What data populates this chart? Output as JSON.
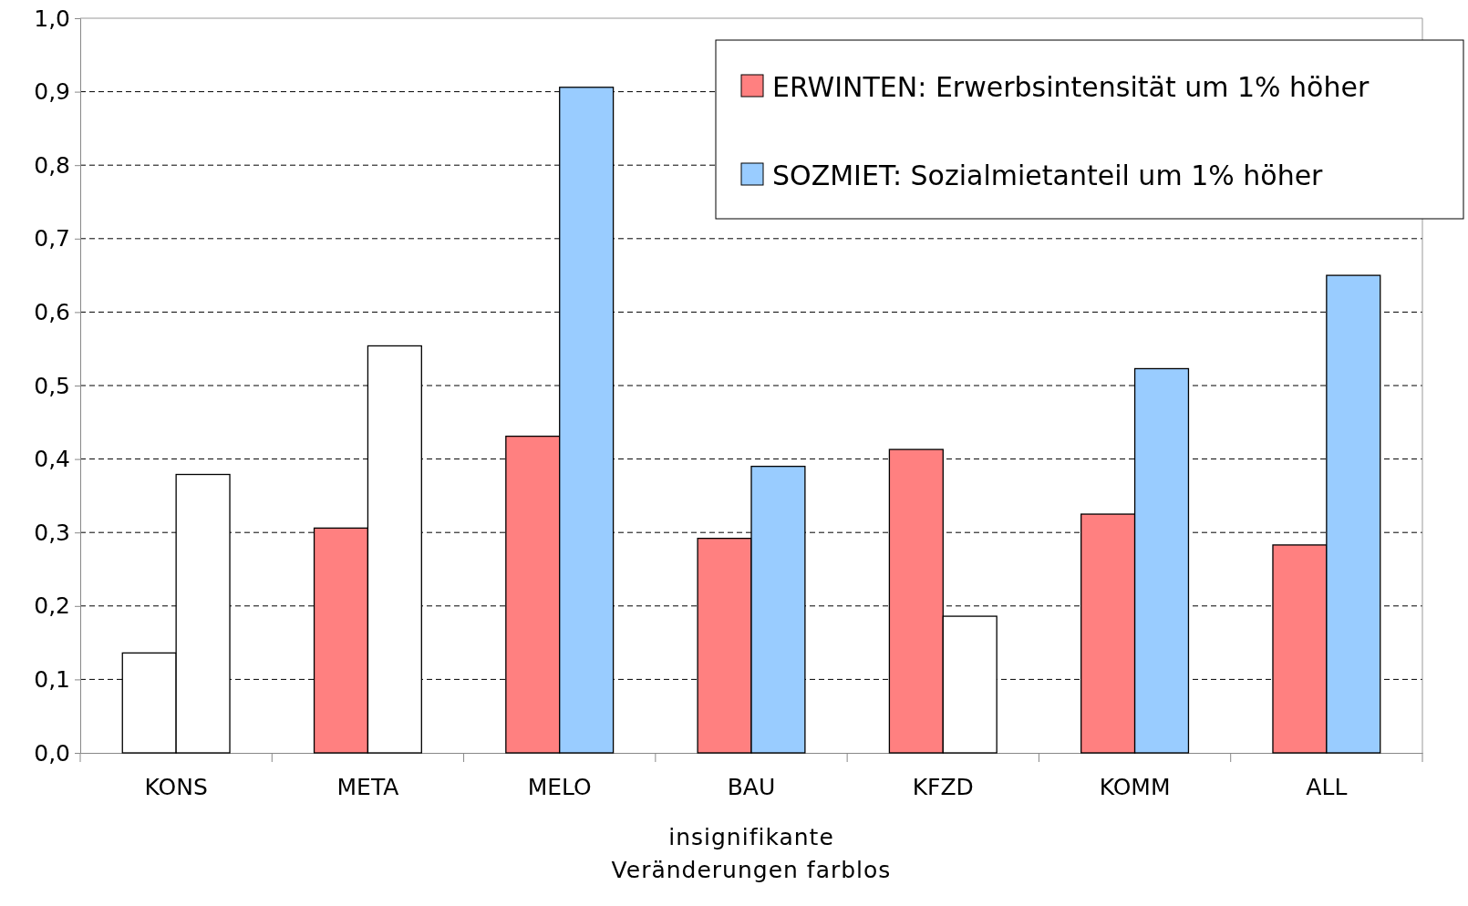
{
  "chart_data": {
    "type": "bar",
    "xlabel": "insignifikante\nVeränderungen farblos",
    "categories": [
      "KONS",
      "META",
      "MELO",
      "BAU",
      "KFZD",
      "KOMM",
      "ALL"
    ],
    "series": [
      {
        "name": "ERWINTEN: Erwerbsintensität um 1% höher",
        "color": "#ff8080",
        "colors": [
          "#ffffff",
          "#ff8080",
          "#ff8080",
          "#ff8080",
          "#ff8080",
          "#ff8080",
          "#ff8080"
        ],
        "values": [
          0.136,
          0.306,
          0.431,
          0.292,
          0.413,
          0.325,
          0.283
        ]
      },
      {
        "name": "SOZMIET: Sozialmietanteil um 1% höher",
        "color": "#99ccff",
        "colors": [
          "#ffffff",
          "#ffffff",
          "#99ccff",
          "#99ccff",
          "#ffffff",
          "#99ccff",
          "#99ccff"
        ],
        "values": [
          0.379,
          0.554,
          0.906,
          0.39,
          0.186,
          0.523,
          0.65
        ]
      }
    ],
    "ylim": [
      0,
      1
    ],
    "yticks": [
      {
        "value": 0,
        "label": "0,0"
      },
      {
        "value": 0.1,
        "label": "0,1"
      },
      {
        "value": 0.2,
        "label": "0,2"
      },
      {
        "value": 0.3,
        "label": "0,3"
      },
      {
        "value": 0.4,
        "label": "0,4"
      },
      {
        "value": 0.5,
        "label": "0,5"
      },
      {
        "value": 0.6,
        "label": "0,6"
      },
      {
        "value": 0.7,
        "label": "0,7"
      },
      {
        "value": 0.8,
        "label": "0,8"
      },
      {
        "value": 0.9,
        "label": "0,9"
      },
      {
        "value": 1,
        "label": "1,0"
      }
    ],
    "grid": "y",
    "legend": "top right"
  }
}
